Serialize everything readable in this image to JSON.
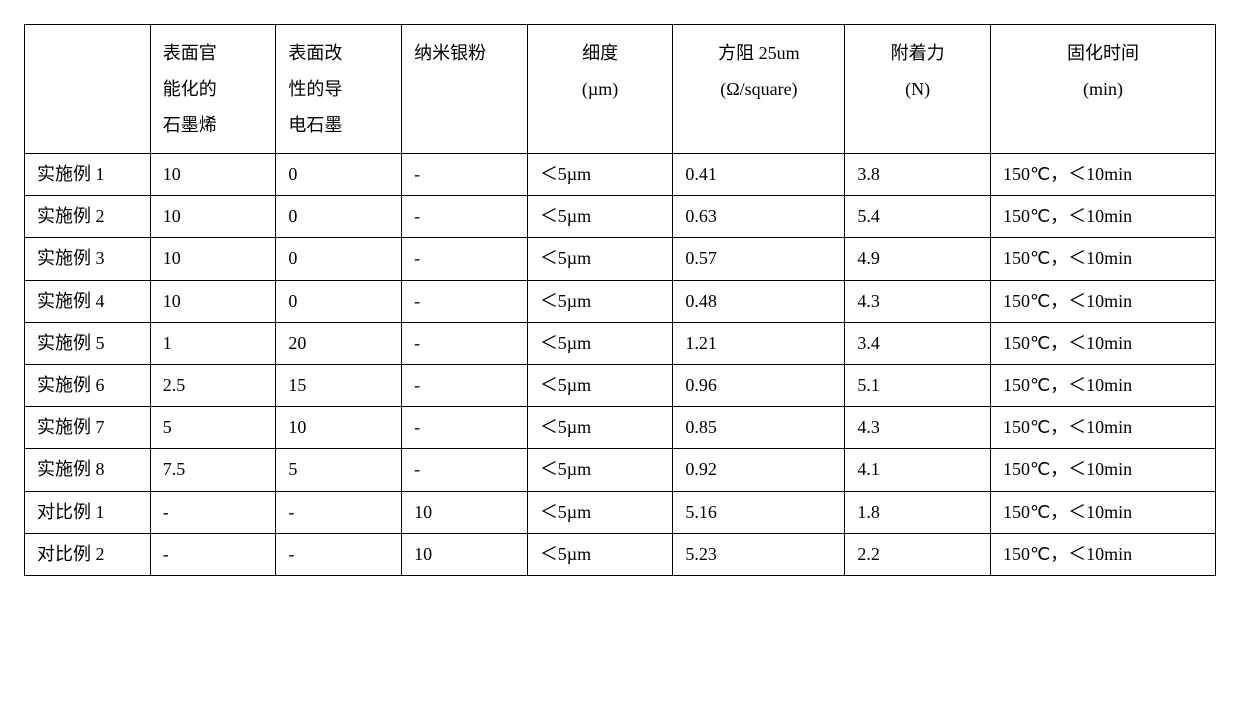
{
  "table": {
    "columns": [
      {
        "key": "empty",
        "label_lines": [
          ""
        ],
        "width_pct": 9.5
      },
      {
        "key": "graphene",
        "label_lines": [
          "表面官",
          "能化的",
          "石墨烯"
        ],
        "width_pct": 9.5
      },
      {
        "key": "graphite",
        "label_lines": [
          "表面改",
          "性的导",
          "电石墨"
        ],
        "width_pct": 9.5
      },
      {
        "key": "nanoag",
        "label_lines": [
          "纳米银粉"
        ],
        "width_pct": 9.5
      },
      {
        "key": "fineness",
        "label_lines": [
          "细度",
          "(µm)"
        ],
        "width_pct": 11
      },
      {
        "key": "sheetres",
        "label_lines": [
          "方阻 25um",
          "(Ω/square)"
        ],
        "width_pct": 13
      },
      {
        "key": "adhesion",
        "label_lines": [
          "附着力",
          "(N)"
        ],
        "width_pct": 11
      },
      {
        "key": "curetime",
        "label_lines": [
          "固化时间",
          "(min)"
        ],
        "width_pct": 17
      }
    ],
    "header_align": {
      "empty": "left",
      "graphene": "left",
      "graphite": "left",
      "nanoag": "left",
      "fineness": "center",
      "sheetres": "center",
      "adhesion": "center",
      "curetime": "center"
    },
    "rows": [
      {
        "label": "实施例 1",
        "graphene": "10",
        "graphite": "0",
        "nanoag": "-",
        "fineness": "＜5µm",
        "sheetres": "0.41",
        "adhesion": "3.8",
        "curetime": "150℃，＜10min"
      },
      {
        "label": "实施例 2",
        "graphene": "10",
        "graphite": "0",
        "nanoag": "-",
        "fineness": "＜5µm",
        "sheetres": "0.63",
        "adhesion": "5.4",
        "curetime": "150℃，＜10min"
      },
      {
        "label": "实施例 3",
        "graphene": "10",
        "graphite": "0",
        "nanoag": "-",
        "fineness": "＜5µm",
        "sheetres": "0.57",
        "adhesion": "4.9",
        "curetime": "150℃，＜10min"
      },
      {
        "label": "实施例 4",
        "graphene": "10",
        "graphite": "0",
        "nanoag": "-",
        "fineness": "＜5µm",
        "sheetres": "0.48",
        "adhesion": "4.3",
        "curetime": "150℃，＜10min"
      },
      {
        "label": "实施例 5",
        "graphene": "1",
        "graphite": "20",
        "nanoag": "-",
        "fineness": "＜5µm",
        "sheetres": "1.21",
        "adhesion": "3.4",
        "curetime": "150℃，＜10min"
      },
      {
        "label": "实施例 6",
        "graphene": "2.5",
        "graphite": "15",
        "nanoag": "-",
        "fineness": "＜5µm",
        "sheetres": "0.96",
        "adhesion": "5.1",
        "curetime": "150℃，＜10min"
      },
      {
        "label": "实施例 7",
        "graphene": "5",
        "graphite": "10",
        "nanoag": "-",
        "fineness": "＜5µm",
        "sheetres": "0.85",
        "adhesion": "4.3",
        "curetime": "150℃，＜10min"
      },
      {
        "label": "实施例 8",
        "graphene": "7.5",
        "graphite": "5",
        "nanoag": "-",
        "fineness": "＜5µm",
        "sheetres": "0.92",
        "adhesion": "4.1",
        "curetime": "150℃，＜10min"
      },
      {
        "label": "对比例 1",
        "graphene": "-",
        "graphite": "-",
        "nanoag": "10",
        "fineness": "＜5µm",
        "sheetres": "5.16",
        "adhesion": "1.8",
        "curetime": "150℃，＜10min"
      },
      {
        "label": "对比例 2",
        "graphene": "-",
        "graphite": "-",
        "nanoag": "10",
        "fineness": "＜5µm",
        "sheetres": "5.23",
        "adhesion": "2.2",
        "curetime": "150℃，＜10min"
      }
    ],
    "border_color": "#000000",
    "background_color": "#ffffff",
    "text_color": "#000000",
    "font_family": "SimSun",
    "font_size_pt": 14
  }
}
